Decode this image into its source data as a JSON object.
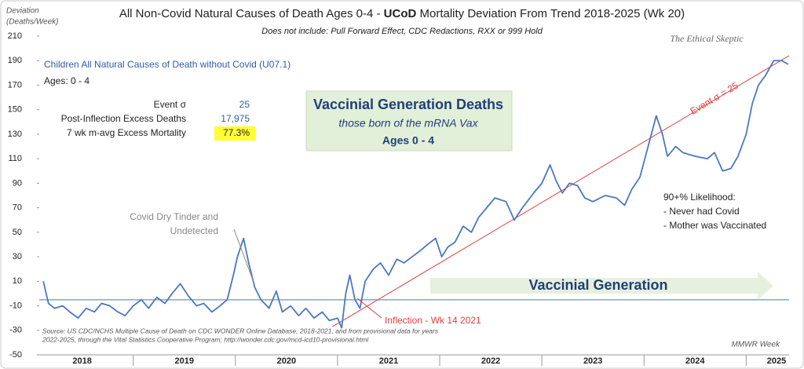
{
  "chart_data": {
    "type": "line",
    "title": {
      "before": "All Non-Covid Natural Causes of Death Ages 0-4 - ",
      "bold": "UCoD",
      "after": " Mortality Deviation From Trend  2018-2025 (Wk 20)"
    },
    "subtitle": "Does not include: Pull Forward Effect,  CDC Redactions, RXX or 999 Hold",
    "brand": "The Ethical Skeptic",
    "y_label": [
      "Deviation",
      "(Deaths/Week)"
    ],
    "x_label": "MMWR Week",
    "legend_title": "Children All Natural Causes of Death without Covid (U07.1)",
    "ages_label": "Ages: 0 - 4",
    "stats": [
      {
        "label": "Event σ",
        "value": "25"
      },
      {
        "label": "Post-Inflection Excess Deaths",
        "value": "17,975"
      },
      {
        "label": "7 wk m-avg Excess Mortality",
        "value": "77.3%"
      }
    ],
    "box": [
      "Vaccinial Generation  Deaths",
      "those born of the mRNA Vax",
      "Ages 0 - 4"
    ],
    "covid_note": [
      "Covid Dry Tinder and",
      "Undetected"
    ],
    "likelihood": [
      "90+% Likelihood:",
      "- Never had Covid",
      "- Mother was Vaccinated"
    ],
    "arrow_label": "Vaccinial Generation",
    "inflection_label": "Inflection - Wk 14 2021",
    "trend_label": "Event σ = 25",
    "source": [
      "Source: US CDC/NCHS Multiple Cause of Death on CDC WONDER Online Database, 2018-2021, and from provisional data for years",
      "2022-2025, through the Vital Statistics Cooperative Program; http://wonder.cdc.gov/mcd-icd10-provisional.html"
    ],
    "xlim": [
      2018.08,
      2025.42
    ],
    "ylim": [
      -50,
      210
    ],
    "yticks": [
      210,
      190,
      170,
      150,
      130,
      110,
      90,
      70,
      50,
      30,
      10,
      -10,
      -30,
      -50
    ],
    "xticks": [
      {
        "value": 2018.5,
        "label": "2018"
      },
      {
        "value": 2019.5,
        "label": "2019"
      },
      {
        "value": 2020.5,
        "label": "2020"
      },
      {
        "value": 2021.5,
        "label": "2021"
      },
      {
        "value": 2022.5,
        "label": "2022"
      },
      {
        "value": 2023.5,
        "label": "2023"
      },
      {
        "value": 2024.5,
        "label": "2024"
      },
      {
        "value": 2025.5,
        "label": "2025"
      }
    ],
    "trend": {
      "color": "#e04040",
      "x": [
        2020.95,
        2025.42
      ],
      "values": [
        -27,
        194
      ]
    },
    "series": [
      {
        "name": "Children All Natural Causes of Death without Covid (U07.1)",
        "color": "#4a78c0",
        "x": [
          2018.12,
          2018.17,
          2018.23,
          2018.31,
          2018.38,
          2018.46,
          2018.54,
          2018.62,
          2018.69,
          2018.77,
          2018.85,
          2018.92,
          2019.0,
          2019.08,
          2019.15,
          2019.23,
          2019.31,
          2019.38,
          2019.46,
          2019.54,
          2019.62,
          2019.69,
          2019.77,
          2019.85,
          2019.92,
          2019.98,
          2020.02,
          2020.08,
          2020.13,
          2020.19,
          2020.25,
          2020.33,
          2020.4,
          2020.46,
          2020.54,
          2020.62,
          2020.69,
          2020.77,
          2020.85,
          2020.92,
          2021.0,
          2021.04,
          2021.08,
          2021.12,
          2021.17,
          2021.22,
          2021.27,
          2021.35,
          2021.42,
          2021.5,
          2021.58,
          2021.65,
          2021.73,
          2021.81,
          2021.88,
          2021.96,
          2022.02,
          2022.08,
          2022.15,
          2022.23,
          2022.31,
          2022.38,
          2022.46,
          2022.54,
          2022.65,
          2022.73,
          2022.81,
          2022.92,
          2023.0,
          2023.08,
          2023.14,
          2023.2,
          2023.27,
          2023.35,
          2023.42,
          2023.5,
          2023.62,
          2023.73,
          2023.81,
          2023.88,
          2023.96,
          2024.04,
          2024.12,
          2024.18,
          2024.23,
          2024.31,
          2024.38,
          2024.5,
          2024.62,
          2024.69,
          2024.77,
          2024.85,
          2024.92,
          2025.0,
          2025.06,
          2025.12,
          2025.19,
          2025.27,
          2025.35,
          2025.41
        ],
        "values": [
          10,
          -8,
          -12,
          -10,
          -15,
          -20,
          -12,
          -15,
          -8,
          -10,
          -15,
          -18,
          -10,
          -5,
          -12,
          -3,
          -8,
          0,
          8,
          -2,
          -10,
          -8,
          -15,
          -10,
          -5,
          15,
          30,
          45,
          25,
          5,
          -5,
          -12,
          2,
          -15,
          -10,
          -18,
          -12,
          -20,
          -15,
          -22,
          -20,
          -28,
          0,
          15,
          -5,
          -12,
          10,
          20,
          25,
          15,
          28,
          25,
          30,
          35,
          40,
          45,
          30,
          38,
          42,
          55,
          50,
          62,
          70,
          78,
          75,
          60,
          70,
          82,
          90,
          105,
          92,
          82,
          90,
          88,
          78,
          75,
          80,
          78,
          72,
          85,
          95,
          120,
          145,
          130,
          112,
          120,
          115,
          112,
          110,
          115,
          100,
          102,
          112,
          130,
          155,
          170,
          178,
          190,
          190,
          187
        ]
      }
    ]
  }
}
